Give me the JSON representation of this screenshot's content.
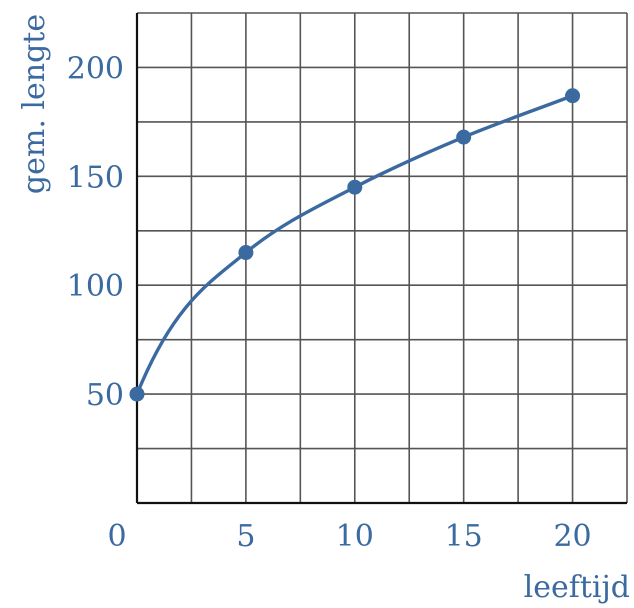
{
  "chart_data": {
    "type": "line",
    "xlabel": "leeftijd",
    "ylabel": "gem. lengte",
    "xlim": [
      0,
      22.5
    ],
    "ylim": [
      0,
      225
    ],
    "grid": true,
    "x_ticks": [
      0,
      5,
      10,
      15,
      20
    ],
    "y_ticks": [
      50,
      100,
      150,
      200
    ],
    "series": [
      {
        "x": [
          0,
          5,
          10,
          15,
          20
        ],
        "values": [
          50,
          115,
          145,
          168,
          187
        ],
        "marker": "circle",
        "curve": "smooth"
      }
    ],
    "colors": {
      "series": "#3b6aa0",
      "text": "#3b6aa0",
      "grid": "#555555",
      "axis": "#111111"
    }
  }
}
